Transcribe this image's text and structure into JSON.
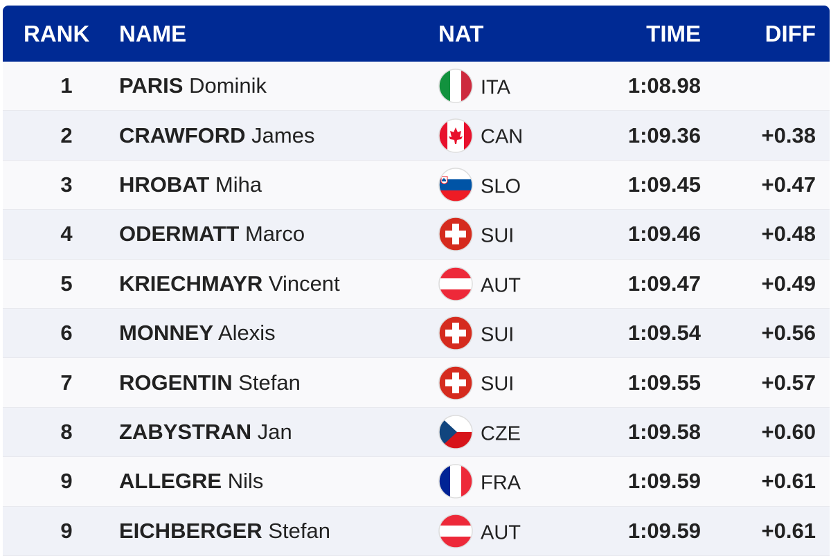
{
  "header": {
    "rank": "RANK",
    "name": "NAME",
    "nat": "NAT",
    "time": "TIME",
    "diff": "DIFF"
  },
  "colors": {
    "header_bg": "#002a94",
    "row_odd": "#f9f9fb",
    "row_even": "#f0f2f8"
  },
  "rows": [
    {
      "rank": "1",
      "last": "PARIS",
      "first": "Dominik",
      "nat": "ITA",
      "time": "1:08.98",
      "diff": ""
    },
    {
      "rank": "2",
      "last": "CRAWFORD",
      "first": "James",
      "nat": "CAN",
      "time": "1:09.36",
      "diff": "+0.38"
    },
    {
      "rank": "3",
      "last": "HROBAT",
      "first": "Miha",
      "nat": "SLO",
      "time": "1:09.45",
      "diff": "+0.47"
    },
    {
      "rank": "4",
      "last": "ODERMATT",
      "first": "Marco",
      "nat": "SUI",
      "time": "1:09.46",
      "diff": "+0.48"
    },
    {
      "rank": "5",
      "last": "KRIECHMAYR",
      "first": "Vincent",
      "nat": "AUT",
      "time": "1:09.47",
      "diff": "+0.49"
    },
    {
      "rank": "6",
      "last": "MONNEY",
      "first": "Alexis",
      "nat": "SUI",
      "time": "1:09.54",
      "diff": "+0.56"
    },
    {
      "rank": "7",
      "last": "ROGENTIN",
      "first": "Stefan",
      "nat": "SUI",
      "time": "1:09.55",
      "diff": "+0.57"
    },
    {
      "rank": "8",
      "last": "ZABYSTRAN",
      "first": "Jan",
      "nat": "CZE",
      "time": "1:09.58",
      "diff": "+0.60"
    },
    {
      "rank": "9",
      "last": "ALLEGRE",
      "first": "Nils",
      "nat": "FRA",
      "time": "1:09.59",
      "diff": "+0.61"
    },
    {
      "rank": "9",
      "last": "EICHBERGER",
      "first": "Stefan",
      "nat": "AUT",
      "time": "1:09.59",
      "diff": "+0.61"
    }
  ]
}
